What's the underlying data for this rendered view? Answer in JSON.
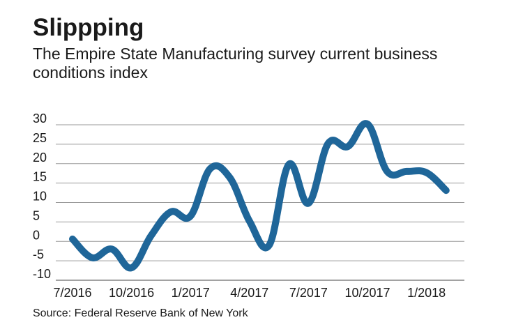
{
  "chart_data": {
    "type": "line",
    "title": "Slippping",
    "subtitle": "The Empire State Manufacturing survey current business conditions index",
    "source": "Source: Federal Reserve Bank of New York",
    "xlabel": "",
    "ylabel": "",
    "ylim": [
      -10,
      30
    ],
    "yticks": [
      30,
      25,
      20,
      15,
      10,
      5,
      0,
      -5,
      -10
    ],
    "xtick_labels": [
      "7/2016",
      "10/2016",
      "1/2017",
      "4/2017",
      "7/2017",
      "10/2017",
      "1/2018"
    ],
    "grid": true,
    "legend": "none",
    "series_color": "#1f6699",
    "x": [
      "2016-07",
      "2016-08",
      "2016-09",
      "2016-10",
      "2016-11",
      "2016-12",
      "2017-01",
      "2017-02",
      "2017-03",
      "2017-04",
      "2017-05",
      "2017-06",
      "2017-07",
      "2017-08",
      "2017-09",
      "2017-10",
      "2017-11",
      "2017-12",
      "2018-01",
      "2018-02"
    ],
    "values": [
      0.6,
      -4.2,
      -2.0,
      -6.8,
      1.5,
      7.6,
      6.5,
      18.7,
      16.4,
      5.2,
      -1.0,
      19.8,
      9.8,
      25.2,
      24.4,
      30.2,
      18.0,
      18.0,
      17.7,
      13.1
    ]
  }
}
